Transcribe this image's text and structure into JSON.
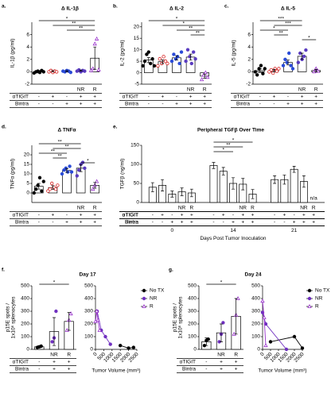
{
  "chart_data": [
    {
      "type": "bar",
      "panel": "a.",
      "title": "Δ IL-1β",
      "ylabel": "IL-1β (pg/ml)",
      "categories": [
        null,
        null,
        null,
        "NR",
        "R"
      ],
      "values": [
        0,
        0.1,
        0.1,
        0.2,
        2.2
      ],
      "errors": [
        0.2,
        0.1,
        0.1,
        0.1,
        1.8
      ],
      "points": [
        [
          -0.2,
          0,
          0.1,
          -0.1,
          0.2,
          0
        ],
        [
          0,
          0.2,
          -0.1,
          0.1,
          0
        ],
        [
          0.1,
          0,
          0.2,
          0.1,
          -0.1
        ],
        [
          0.1,
          0.3,
          0,
          0.2,
          0.1
        ],
        [
          0.2,
          0.5,
          4.5,
          5.3,
          0.3
        ]
      ],
      "colors": [
        "#000000",
        "#d62020",
        "#2a4bd7",
        "#5a3cc0",
        "#9933cc"
      ],
      "markers": [
        "circle",
        "open-circle",
        "circle",
        "circle",
        "open-triangle"
      ],
      "ylim": [
        -2,
        8
      ],
      "yticks": [
        -2,
        0,
        2,
        4,
        6
      ],
      "comparisons": [
        {
          "label": "*",
          "between": [
            0,
            4
          ]
        },
        {
          "label": "**",
          "between": [
            1,
            4
          ]
        },
        {
          "label": "**",
          "between": [
            2,
            4
          ]
        }
      ],
      "treatment_rows": [
        {
          "name": "αTIGIT",
          "marks": [
            "-",
            "+",
            "-",
            "+",
            "+"
          ]
        },
        {
          "name": "Bintra",
          "marks": [
            "-",
            "-",
            "+",
            "+",
            "+"
          ]
        }
      ]
    },
    {
      "type": "bar",
      "panel": "b.",
      "title": "Δ IL-2",
      "ylabel": "IL-2 (pg/ml)",
      "categories": [
        null,
        null,
        null,
        "NR",
        "R"
      ],
      "values": [
        5.5,
        4.8,
        6.5,
        6.8,
        -1.5
      ],
      "errors": [
        1.1,
        0.8,
        0.9,
        1.3,
        0.9
      ],
      "points": [
        [
          3,
          5,
          8,
          9,
          4,
          6,
          3
        ],
        [
          3,
          6,
          4,
          7,
          5,
          4
        ],
        [
          5,
          8,
          6,
          7,
          4,
          9
        ],
        [
          5,
          10,
          7,
          4,
          9,
          6
        ],
        [
          -3,
          -1,
          0,
          -2
        ]
      ],
      "colors": [
        "#000000",
        "#d62020",
        "#2a4bd7",
        "#5a3cc0",
        "#9933cc"
      ],
      "markers": [
        "circle",
        "open-circle",
        "circle",
        "circle",
        "open-triangle"
      ],
      "ylim": [
        -5,
        22
      ],
      "yticks": [
        -5,
        0,
        5,
        10,
        15,
        20
      ],
      "comparisons": [
        {
          "label": "*",
          "between": [
            0,
            4
          ]
        },
        {
          "label": "*",
          "between": [
            1,
            4
          ]
        },
        {
          "label": "**",
          "between": [
            2,
            4
          ]
        },
        {
          "label": "**",
          "between": [
            3,
            4
          ]
        }
      ],
      "treatment_rows": [
        {
          "name": "αTIGIT",
          "marks": [
            "-",
            "+",
            "-",
            "+",
            "+"
          ]
        },
        {
          "name": "Bintra",
          "marks": [
            "-",
            "-",
            "+",
            "+",
            "+"
          ]
        }
      ]
    },
    {
      "type": "bar",
      "panel": "c.",
      "title": "Δ IL-5",
      "ylabel": "IL-5 (pg/ml)",
      "categories": [
        null,
        null,
        null,
        "NR",
        "R"
      ],
      "values": [
        0.2,
        0.2,
        1.5,
        2.5,
        0.2
      ],
      "errors": [
        0.3,
        0.2,
        0.4,
        0.5,
        0.2
      ],
      "points": [
        [
          0,
          -0.5,
          0.5,
          1,
          -0.3,
          0.5
        ],
        [
          0,
          0.3,
          -0.2,
          0.5,
          0.1,
          0.5
        ],
        [
          1,
          2,
          1.5,
          3,
          1,
          0.5
        ],
        [
          1.5,
          3,
          2,
          2.5,
          3.5
        ],
        [
          0,
          0.5,
          0.1
        ]
      ],
      "colors": [
        "#000000",
        "#d62020",
        "#2a4bd7",
        "#5a3cc0",
        "#9933cc"
      ],
      "markers": [
        "circle",
        "open-circle",
        "circle",
        "circle",
        "open-triangle"
      ],
      "ylim": [
        -2,
        8
      ],
      "yticks": [
        -2,
        0,
        2,
        4,
        6
      ],
      "comparisons": [
        {
          "label": "***",
          "between": [
            0,
            3
          ]
        },
        {
          "label": "***",
          "between": [
            1,
            3
          ]
        },
        {
          "label": "*",
          "between": [
            0,
            2
          ]
        },
        {
          "label": "**",
          "between": [
            1,
            2
          ]
        },
        {
          "label": "*",
          "between": [
            3,
            4
          ]
        }
      ],
      "treatment_rows": [
        {
          "name": "αTIGIT",
          "marks": [
            "-",
            "+",
            "-",
            "+",
            "+"
          ]
        },
        {
          "name": "Bintra",
          "marks": [
            "-",
            "-",
            "+",
            "+",
            "+"
          ]
        }
      ]
    },
    {
      "type": "bar",
      "panel": "d.",
      "title": "Δ TNFα",
      "ylabel": "TNFα (pg/ml)",
      "categories": [
        null,
        null,
        null,
        "NR",
        "R"
      ],
      "values": [
        3.5,
        2.8,
        11.8,
        13,
        4
      ],
      "errors": [
        1.5,
        1,
        1,
        1.8,
        1.5
      ],
      "points": [
        [
          0,
          2,
          4,
          8,
          1,
          6
        ],
        [
          1,
          2,
          5,
          3,
          2,
          4
        ],
        [
          10,
          12,
          13,
          11,
          14,
          11
        ],
        [
          9,
          12,
          15,
          16,
          13
        ],
        [
          2,
          4,
          6
        ]
      ],
      "colors": [
        "#000000",
        "#d62020",
        "#2a4bd7",
        "#5a3cc0",
        "#9933cc"
      ],
      "markers": [
        "circle",
        "open-circle",
        "circle",
        "circle",
        "open-triangle"
      ],
      "ylim": [
        -5,
        25
      ],
      "yticks": [
        0,
        5,
        10,
        15,
        20
      ],
      "comparisons": [
        {
          "label": "**",
          "between": [
            0,
            3
          ]
        },
        {
          "label": "**",
          "between": [
            1,
            3
          ]
        },
        {
          "label": "**",
          "between": [
            0,
            2
          ]
        },
        {
          "label": "**",
          "between": [
            1,
            2
          ]
        },
        {
          "label": "*",
          "between": [
            3,
            4
          ]
        }
      ],
      "treatment_rows": [
        {
          "name": "αTIGIT",
          "marks": [
            "-",
            "+",
            "-",
            "+",
            "+"
          ]
        },
        {
          "name": "Bintra",
          "marks": [
            "-",
            "-",
            "+",
            "+",
            "+"
          ]
        }
      ]
    },
    {
      "type": "bar",
      "panel": "e.",
      "title": "Peripheral TGFβ Over Time",
      "ylabel": "TGFβ (ng/ml)",
      "xlabel": "Days Post Tumor Inoculation",
      "categories": [
        "0",
        "14",
        "21"
      ],
      "series": [
        {
          "color": "#000000",
          "marker": "circle",
          "values": [
            40,
            97,
            60
          ],
          "errors": [
            12,
            8,
            10
          ]
        },
        {
          "color": "#d62020",
          "marker": "open-circle",
          "values": [
            45,
            82,
            60
          ],
          "errors": [
            15,
            10,
            12
          ]
        },
        {
          "color": "#2a4bd7",
          "marker": "circle",
          "values": [
            22,
            50,
            87
          ],
          "errors": [
            8,
            15,
            8
          ]
        },
        {
          "color": "#5a3cc0",
          "marker": "circle",
          "values": [
            28,
            48,
            55
          ],
          "errors": [
            10,
            15,
            15
          ]
        },
        {
          "color": "#9933cc",
          "marker": "open-triangle",
          "values": [
            25,
            22,
            null
          ],
          "errors": [
            10,
            12,
            null
          ]
        }
      ],
      "series_labels": [
        null,
        null,
        null,
        "NR",
        "R"
      ],
      "ylim": [
        0,
        150
      ],
      "yticks": [
        0,
        50,
        100,
        150
      ],
      "annotations": [
        {
          "text": "n/a",
          "group": 2,
          "series": 4
        }
      ],
      "comparisons": [
        {
          "label": "*",
          "group": 1,
          "between": [
            0,
            4
          ]
        },
        {
          "label": "**",
          "group": 1,
          "between": [
            0,
            3
          ]
        },
        {
          "label": "*",
          "group": 1,
          "between": [
            0,
            2
          ]
        }
      ],
      "treatment_rows": [
        {
          "name": "αTIGIT",
          "marks": [
            "-",
            "+",
            "-",
            "+",
            "+"
          ]
        },
        {
          "name": "Bintra",
          "marks": [
            "-",
            "-",
            "+",
            "+",
            "+"
          ]
        }
      ]
    },
    {
      "type": "bar",
      "panel": "f.",
      "title": "Day 17",
      "ylabel": [
        "p15E spots /",
        "1x10⁶ splenocytes"
      ],
      "categories": [
        null,
        "NR",
        "R"
      ],
      "values": [
        20,
        140,
        220
      ],
      "errors": [
        8,
        110,
        70
      ],
      "points": [
        [
          15,
          20,
          25
        ],
        [
          60,
          90,
          300
        ],
        [
          150,
          230,
          280
        ]
      ],
      "colors": [
        "#000000",
        "#7030c0",
        "#9933cc"
      ],
      "markers": [
        "circle",
        "circle",
        "open-triangle"
      ],
      "ylim": [
        0,
        500
      ],
      "yticks": [
        0,
        100,
        200,
        300,
        400,
        500
      ],
      "comparisons": [
        {
          "label": "*",
          "between": [
            0,
            2
          ]
        }
      ],
      "treatment_rows": [
        {
          "name": "αTIGIT",
          "marks": [
            "-",
            "+",
            "+"
          ]
        },
        {
          "name": "Bintra",
          "marks": [
            "-",
            "+",
            "+"
          ]
        }
      ]
    },
    {
      "type": "line",
      "xlabel": "Tumor Volume (mm³)",
      "xlim": [
        0,
        2500
      ],
      "xticks": [
        0,
        500,
        1000,
        1500,
        2000,
        2500
      ],
      "ylim": [
        0,
        500
      ],
      "yticks": [
        0,
        100,
        200,
        300,
        400,
        500
      ],
      "series": [
        {
          "name": "No TX",
          "color": "#000000",
          "marker": "circle",
          "x": [
            1500,
            2000,
            2300
          ],
          "values": [
            30,
            10,
            15
          ]
        },
        {
          "name": "NR",
          "color": "#7030c0",
          "marker": "circle",
          "x": [
            100,
            350,
            600,
            900
          ],
          "values": [
            300,
            150,
            100,
            40
          ]
        },
        {
          "name": "R",
          "color": "#9933cc",
          "marker": "open-triangle",
          "x": [
            0,
            80,
            150,
            250
          ],
          "values": [
            220,
            300,
            230,
            150
          ]
        }
      ]
    },
    {
      "type": "bar",
      "panel": "g.",
      "title": "Day 24",
      "ylabel": [
        "p15E spots /",
        "1x10⁶ splenocytes"
      ],
      "categories": [
        null,
        "NR",
        "R"
      ],
      "values": [
        60,
        130,
        260
      ],
      "errors": [
        30,
        70,
        140
      ],
      "points": [
        [
          30,
          70,
          80
        ],
        [
          60,
          120,
          210
        ],
        [
          120,
          270,
          400
        ]
      ],
      "colors": [
        "#000000",
        "#7030c0",
        "#9933cc"
      ],
      "markers": [
        "circle",
        "circle",
        "open-triangle"
      ],
      "ylim": [
        0,
        500
      ],
      "yticks": [
        0,
        100,
        200,
        300,
        400,
        500
      ],
      "comparisons": [
        {
          "label": "*",
          "between": [
            0,
            2
          ]
        }
      ],
      "treatment_rows": [
        {
          "name": "αTIGIT",
          "marks": [
            "-",
            "+",
            "+"
          ]
        },
        {
          "name": "Bintra",
          "marks": [
            "-",
            "+",
            "+"
          ]
        }
      ]
    },
    {
      "type": "line",
      "xlabel": "Tumor Volume (mm³)",
      "xlim": [
        0,
        2500
      ],
      "xticks": [
        0,
        500,
        1000,
        1500,
        2000,
        2500
      ],
      "ylim": [
        0,
        500
      ],
      "yticks": [
        0,
        100,
        200,
        300,
        400,
        500
      ],
      "series": [
        {
          "name": "No TX",
          "color": "#000000",
          "marker": "circle",
          "x": [
            500,
            2000,
            2500
          ],
          "values": [
            60,
            100,
            10
          ]
        },
        {
          "name": "NR",
          "color": "#7030c0",
          "marker": "circle",
          "x": [
            0,
            200,
            1500
          ],
          "values": [
            290,
            200,
            0
          ]
        },
        {
          "name": "R",
          "color": "#9933cc",
          "marker": "open-triangle",
          "x": [
            0,
            100,
            200
          ],
          "values": [
            380,
            250,
            30
          ]
        }
      ]
    }
  ]
}
